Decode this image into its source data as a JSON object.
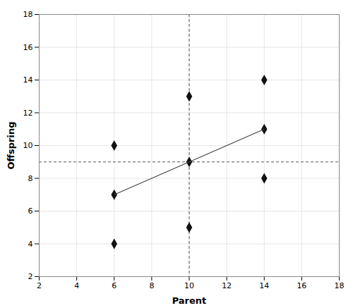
{
  "chart_data": {
    "type": "scatter",
    "xlabel": "Parent",
    "ylabel": "Offspring",
    "series": [
      {
        "type": "scatter",
        "x": [
          6,
          6,
          6,
          10,
          10,
          10,
          14,
          14,
          14
        ],
        "values": [
          4,
          7,
          10,
          5,
          9,
          13,
          8,
          11,
          14
        ],
        "color": "#111111",
        "marker": "diamond"
      },
      {
        "type": "line",
        "x": [
          6,
          10,
          14
        ],
        "values": [
          7,
          9,
          11
        ],
        "color": "#444444",
        "line_style": "solid"
      }
    ],
    "vline": {
      "x": 10,
      "color": "#555555",
      "line_style": "dashed"
    },
    "hline": {
      "y": 9,
      "color": "#555555",
      "line_style": "dashed"
    },
    "xlim": [
      2,
      18
    ],
    "ylim": [
      2,
      18
    ],
    "xticks": [
      2,
      4,
      6,
      8,
      10,
      12,
      14,
      16,
      18
    ],
    "yticks": [
      2,
      4,
      6,
      8,
      10,
      12,
      14,
      16,
      18
    ],
    "grid": true
  }
}
